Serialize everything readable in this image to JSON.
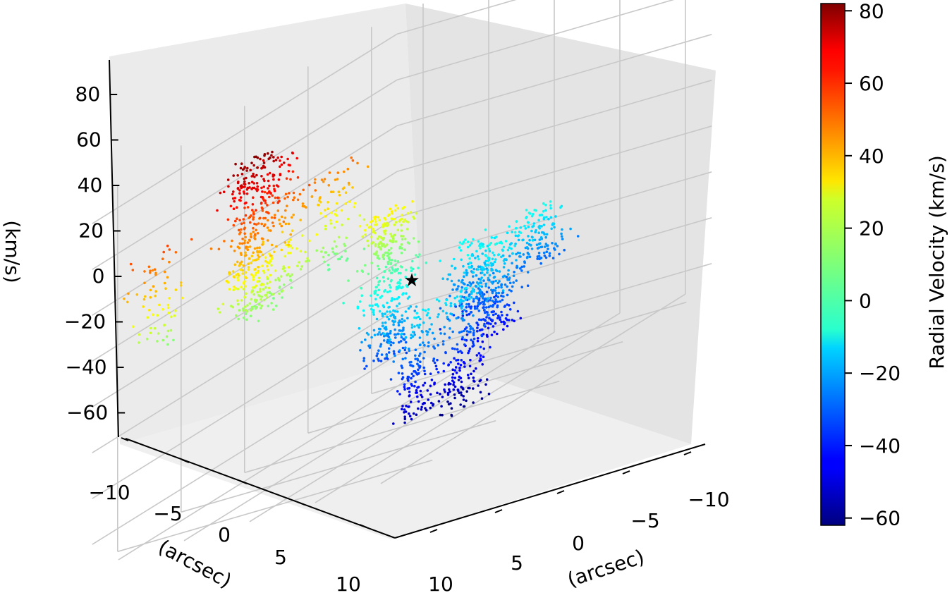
{
  "chart_data": {
    "type": "scatter",
    "projection": "3d",
    "title": "",
    "xlabel": "(arcsec)",
    "ylabel": "(arcsec)",
    "zlabel": "(km/s)",
    "x_ticks": [
      "−10",
      "−5",
      "0",
      "5",
      "10"
    ],
    "y_ticks": [
      "−10",
      "−5",
      "0",
      "5",
      "10"
    ],
    "z_ticks": [
      "80",
      "60",
      "40",
      "20",
      "0",
      "−20",
      "−40",
      "−60"
    ],
    "xlim": [
      -12,
      12
    ],
    "ylim": [
      -12,
      12
    ],
    "zlim": [
      -70,
      90
    ],
    "grid": true,
    "pane_color": "#ebebeb",
    "colormap": "jet",
    "colorbar": {
      "label": "Radial Velocity (km/s)",
      "range": [
        -62,
        82
      ],
      "ticks": [
        "80",
        "60",
        "40",
        "20",
        "0",
        "−20",
        "−40",
        "−60"
      ]
    },
    "marker_center": {
      "x": 0,
      "y": 0,
      "z": 0,
      "symbol": "star",
      "color": "#000000"
    },
    "clusters": [
      {
        "name": "",
        "x": 8.0,
        "y": -3.5,
        "z_min": 10,
        "z_max": 82,
        "n": 220
      },
      {
        "name": "",
        "x": 6.5,
        "y": -5.0,
        "z_min": 10,
        "z_max": 78,
        "n": 180
      },
      {
        "name": "",
        "x": 3.0,
        "y": -6.0,
        "z_min": 8,
        "z_max": 70,
        "n": 120
      },
      {
        "name": "",
        "x": -2.0,
        "y": -7.0,
        "z_min": 5,
        "z_max": 50,
        "n": 90
      },
      {
        "name": "",
        "x": 9.0,
        "y": -10.0,
        "z_min": 10,
        "z_max": 55,
        "n": 70
      },
      {
        "name": "",
        "x": -7.5,
        "y": 3.0,
        "z_min": -30,
        "z_max": -5,
        "n": 160
      },
      {
        "name": "",
        "x": 4.0,
        "y": 8.5,
        "z_min": -62,
        "z_max": -10,
        "n": 200
      },
      {
        "name": "",
        "x": 6.5,
        "y": 7.5,
        "z_min": -55,
        "z_max": -10,
        "n": 180
      },
      {
        "name": "",
        "x": -2.0,
        "y": 5.0,
        "z_min": -45,
        "z_max": -5,
        "n": 260
      },
      {
        "name": "",
        "x": -5.0,
        "y": 0.5,
        "z_min": -40,
        "z_max": -5,
        "n": 150
      },
      {
        "name": "",
        "x": 2.0,
        "y": 1.0,
        "z_min": -35,
        "z_max": 30,
        "n": 400
      }
    ]
  }
}
